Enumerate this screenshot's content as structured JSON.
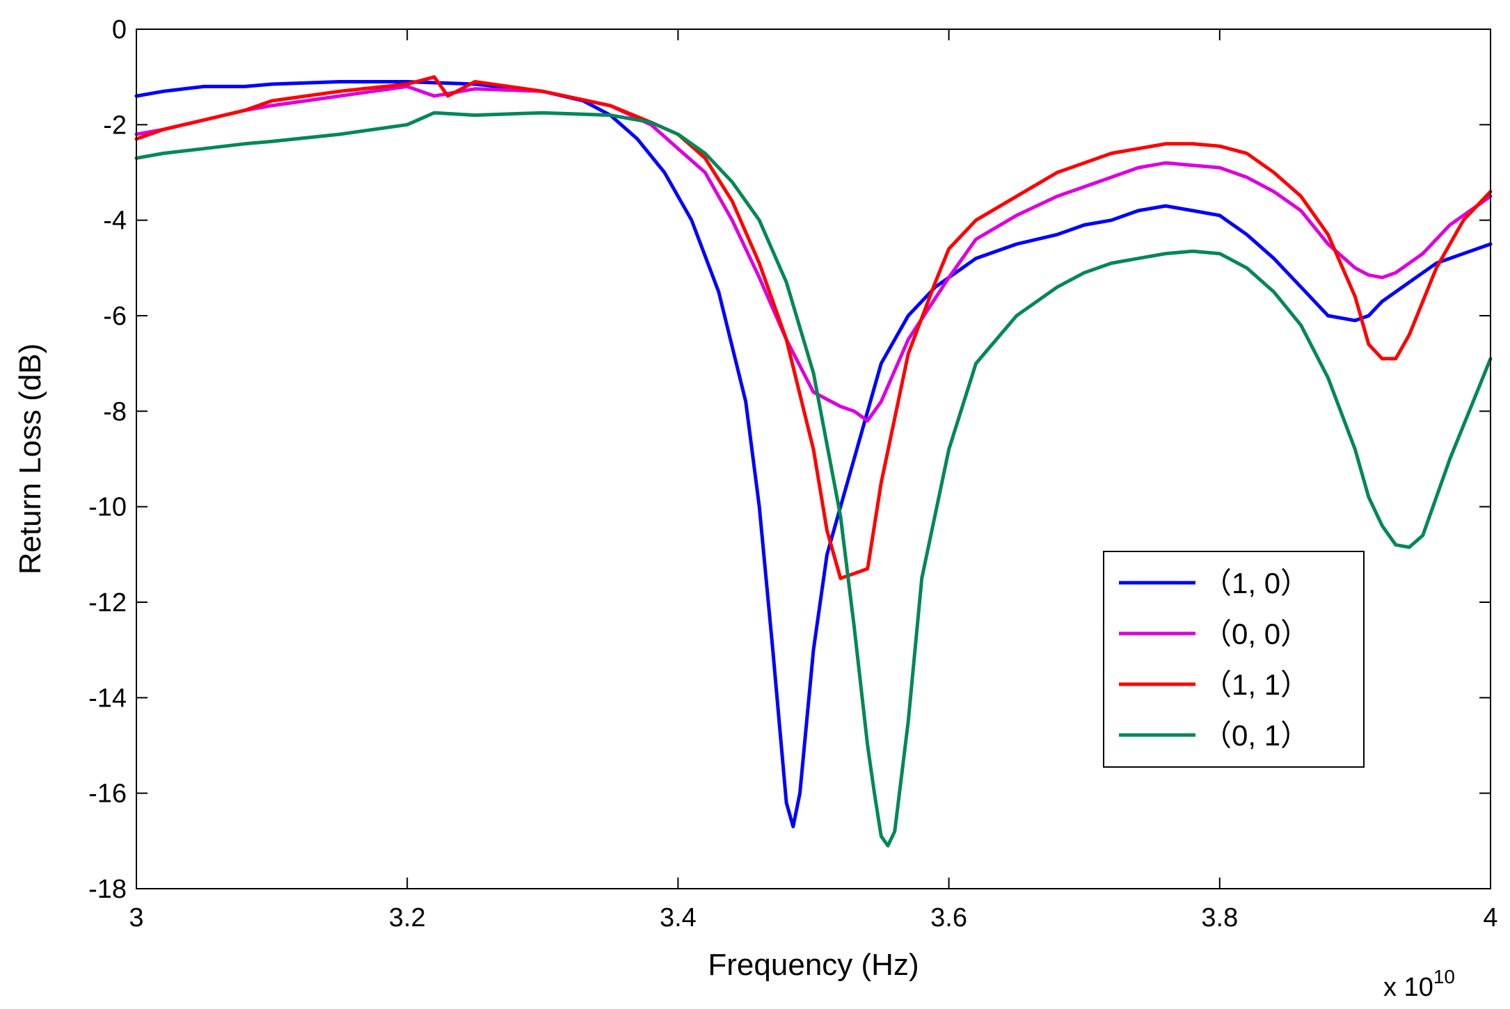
{
  "chart_data": {
    "type": "line",
    "title": "",
    "xlabel": "Frequency (Hz)",
    "ylabel": "Return Loss (dB)",
    "x_multiplier": "x 10",
    "x_multiplier_exponent": "10",
    "xlim": [
      3.0,
      4.0
    ],
    "ylim": [
      -18,
      0
    ],
    "xticks": [
      3.0,
      3.2,
      3.4,
      3.6,
      3.8,
      4.0
    ],
    "xtick_labels": [
      "3",
      "3.2",
      "3.4",
      "3.6",
      "3.8",
      "4"
    ],
    "yticks": [
      0,
      -2,
      -4,
      -6,
      -8,
      -10,
      -12,
      -14,
      -16,
      -18
    ],
    "ytick_labels": [
      "0",
      "-2",
      "-4",
      "-6",
      "-8",
      "-10",
      "-12",
      "-14",
      "-16",
      "-18"
    ],
    "grid": false,
    "legend_position": "lower-right",
    "series": [
      {
        "name": "（1, 0）",
        "color": "#0000ff",
        "x": [
          3.0,
          3.02,
          3.05,
          3.08,
          3.1,
          3.15,
          3.2,
          3.25,
          3.3,
          3.33,
          3.35,
          3.37,
          3.39,
          3.41,
          3.43,
          3.45,
          3.46,
          3.47,
          3.48,
          3.485,
          3.49,
          3.5,
          3.51,
          3.52,
          3.53,
          3.55,
          3.57,
          3.59,
          3.6,
          3.62,
          3.65,
          3.68,
          3.7,
          3.72,
          3.74,
          3.76,
          3.78,
          3.8,
          3.82,
          3.84,
          3.86,
          3.88,
          3.9,
          3.91,
          3.92,
          3.94,
          3.96,
          3.98,
          4.0
        ],
        "y": [
          -1.4,
          -1.3,
          -1.2,
          -1.2,
          -1.15,
          -1.1,
          -1.1,
          -1.15,
          -1.3,
          -1.5,
          -1.8,
          -2.3,
          -3.0,
          -4.0,
          -5.5,
          -7.8,
          -10.0,
          -13.0,
          -16.2,
          -16.7,
          -16.0,
          -13.0,
          -11.0,
          -10.0,
          -9.0,
          -7.0,
          -6.0,
          -5.4,
          -5.2,
          -4.8,
          -4.5,
          -4.3,
          -4.1,
          -4.0,
          -3.8,
          -3.7,
          -3.8,
          -3.9,
          -4.3,
          -4.8,
          -5.4,
          -6.0,
          -6.1,
          -6.0,
          -5.7,
          -5.3,
          -4.9,
          -4.7,
          -4.5
        ]
      },
      {
        "name": "（0, 0）",
        "color": "#dd00dd",
        "x": [
          3.0,
          3.02,
          3.05,
          3.08,
          3.1,
          3.15,
          3.2,
          3.22,
          3.25,
          3.3,
          3.35,
          3.38,
          3.4,
          3.42,
          3.44,
          3.46,
          3.48,
          3.5,
          3.52,
          3.53,
          3.54,
          3.55,
          3.57,
          3.6,
          3.62,
          3.65,
          3.68,
          3.7,
          3.72,
          3.74,
          3.76,
          3.78,
          3.8,
          3.82,
          3.84,
          3.86,
          3.88,
          3.9,
          3.91,
          3.92,
          3.93,
          3.95,
          3.97,
          4.0
        ],
        "y": [
          -2.2,
          -2.1,
          -1.9,
          -1.7,
          -1.6,
          -1.4,
          -1.2,
          -1.4,
          -1.25,
          -1.3,
          -1.6,
          -2.0,
          -2.5,
          -3.0,
          -4.0,
          -5.2,
          -6.5,
          -7.6,
          -7.9,
          -8.0,
          -8.2,
          -7.8,
          -6.5,
          -5.2,
          -4.4,
          -3.9,
          -3.5,
          -3.3,
          -3.1,
          -2.9,
          -2.8,
          -2.85,
          -2.9,
          -3.1,
          -3.4,
          -3.8,
          -4.5,
          -5.0,
          -5.15,
          -5.2,
          -5.1,
          -4.7,
          -4.1,
          -3.5
        ]
      },
      {
        "name": "（1, 1）",
        "color": "#ff0000",
        "x": [
          3.0,
          3.02,
          3.05,
          3.08,
          3.1,
          3.15,
          3.2,
          3.22,
          3.23,
          3.25,
          3.3,
          3.35,
          3.38,
          3.4,
          3.42,
          3.44,
          3.46,
          3.48,
          3.5,
          3.51,
          3.52,
          3.53,
          3.54,
          3.55,
          3.57,
          3.59,
          3.6,
          3.62,
          3.65,
          3.68,
          3.7,
          3.72,
          3.74,
          3.76,
          3.78,
          3.8,
          3.82,
          3.84,
          3.86,
          3.88,
          3.9,
          3.91,
          3.92,
          3.93,
          3.94,
          3.96,
          3.98,
          4.0
        ],
        "y": [
          -2.3,
          -2.1,
          -1.9,
          -1.7,
          -1.5,
          -1.3,
          -1.15,
          -1.0,
          -1.4,
          -1.1,
          -1.3,
          -1.6,
          -1.95,
          -2.2,
          -2.7,
          -3.6,
          -4.9,
          -6.5,
          -8.8,
          -10.5,
          -11.5,
          -11.4,
          -11.3,
          -9.5,
          -6.8,
          -5.3,
          -4.6,
          -4.0,
          -3.5,
          -3.0,
          -2.8,
          -2.6,
          -2.5,
          -2.4,
          -2.4,
          -2.45,
          -2.6,
          -3.0,
          -3.5,
          -4.3,
          -5.6,
          -6.6,
          -6.9,
          -6.9,
          -6.4,
          -5.0,
          -4.0,
          -3.4
        ]
      },
      {
        "name": "（0, 1）",
        "color": "#008855",
        "x": [
          3.0,
          3.02,
          3.05,
          3.08,
          3.1,
          3.15,
          3.2,
          3.22,
          3.25,
          3.3,
          3.35,
          3.38,
          3.4,
          3.42,
          3.44,
          3.46,
          3.48,
          3.5,
          3.52,
          3.53,
          3.54,
          3.545,
          3.55,
          3.555,
          3.56,
          3.57,
          3.58,
          3.6,
          3.62,
          3.65,
          3.68,
          3.7,
          3.72,
          3.74,
          3.76,
          3.78,
          3.8,
          3.82,
          3.84,
          3.86,
          3.88,
          3.9,
          3.91,
          3.92,
          3.93,
          3.94,
          3.95,
          3.97,
          4.0
        ],
        "y": [
          -2.7,
          -2.6,
          -2.5,
          -2.4,
          -2.35,
          -2.2,
          -2.0,
          -1.75,
          -1.8,
          -1.75,
          -1.8,
          -1.95,
          -2.2,
          -2.6,
          -3.2,
          -4.0,
          -5.3,
          -7.2,
          -10.2,
          -12.5,
          -15.0,
          -16.0,
          -16.9,
          -17.1,
          -16.8,
          -14.5,
          -11.5,
          -8.8,
          -7.0,
          -6.0,
          -5.4,
          -5.1,
          -4.9,
          -4.8,
          -4.7,
          -4.65,
          -4.7,
          -5.0,
          -5.5,
          -6.2,
          -7.3,
          -8.8,
          -9.8,
          -10.4,
          -10.8,
          -10.85,
          -10.6,
          -9.0,
          -6.9
        ]
      }
    ]
  }
}
